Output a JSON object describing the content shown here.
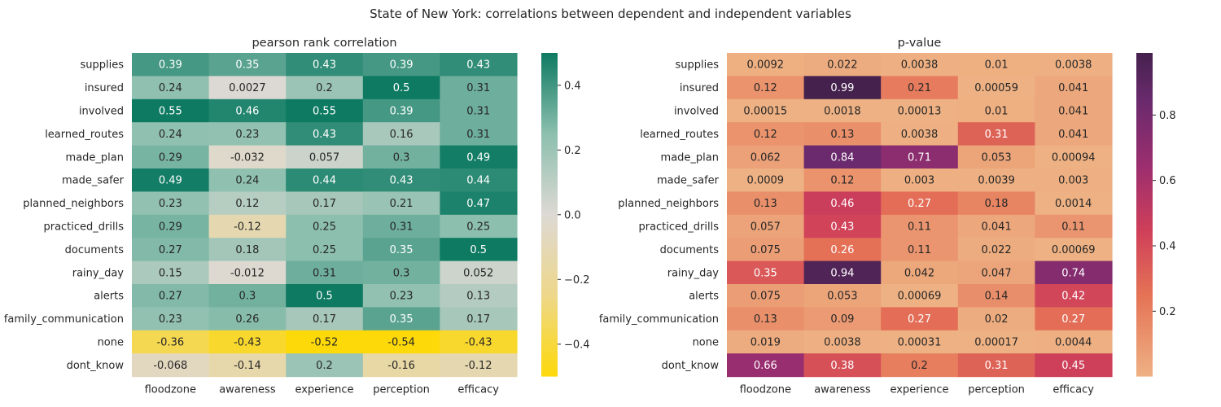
{
  "suptitle": "State of New York: correlations between dependent and independent variables",
  "chart_data": [
    {
      "type": "heatmap",
      "title": "pearson rank correlation",
      "x": [
        "floodzone",
        "awareness",
        "experience",
        "perception",
        "efficacy"
      ],
      "y": [
        "supplies",
        "insured",
        "involved",
        "learned_routes",
        "made_plan",
        "made_safer",
        "planned_neighbors",
        "practiced_drills",
        "documents",
        "rainy_day",
        "alerts",
        "family_communication",
        "none",
        "dont_know"
      ],
      "values": [
        [
          0.39,
          0.35,
          0.43,
          0.39,
          0.43
        ],
        [
          0.24,
          0.0027,
          0.2,
          0.5,
          0.31
        ],
        [
          0.55,
          0.46,
          0.55,
          0.39,
          0.31
        ],
        [
          0.24,
          0.23,
          0.43,
          0.16,
          0.31
        ],
        [
          0.29,
          -0.032,
          0.057,
          0.3,
          0.49
        ],
        [
          0.49,
          0.24,
          0.44,
          0.43,
          0.44
        ],
        [
          0.23,
          0.12,
          0.17,
          0.21,
          0.47
        ],
        [
          0.29,
          -0.12,
          0.25,
          0.31,
          0.25
        ],
        [
          0.27,
          0.18,
          0.25,
          0.35,
          0.5
        ],
        [
          0.15,
          -0.012,
          0.31,
          0.3,
          0.052
        ],
        [
          0.27,
          0.3,
          0.5,
          0.23,
          0.13
        ],
        [
          0.23,
          0.26,
          0.17,
          0.35,
          0.17
        ],
        [
          -0.36,
          -0.43,
          -0.52,
          -0.54,
          -0.43
        ],
        [
          -0.068,
          -0.14,
          0.2,
          -0.16,
          -0.12
        ]
      ],
      "labels": [
        [
          "0.39",
          "0.35",
          "0.43",
          "0.39",
          "0.43"
        ],
        [
          "0.24",
          "0.0027",
          "0.2",
          "0.5",
          "0.31"
        ],
        [
          "0.55",
          "0.46",
          "0.55",
          "0.39",
          "0.31"
        ],
        [
          "0.24",
          "0.23",
          "0.43",
          "0.16",
          "0.31"
        ],
        [
          "0.29",
          "-0.032",
          "0.057",
          "0.3",
          "0.49"
        ],
        [
          "0.49",
          "0.24",
          "0.44",
          "0.43",
          "0.44"
        ],
        [
          "0.23",
          "0.12",
          "0.17",
          "0.21",
          "0.47"
        ],
        [
          "0.29",
          "-0.12",
          "0.25",
          "0.31",
          "0.25"
        ],
        [
          "0.27",
          "0.18",
          "0.25",
          "0.35",
          "0.5"
        ],
        [
          "0.15",
          "-0.012",
          "0.31",
          "0.3",
          "0.052"
        ],
        [
          "0.27",
          "0.3",
          "0.5",
          "0.23",
          "0.13"
        ],
        [
          "0.23",
          "0.26",
          "0.17",
          "0.35",
          "0.17"
        ],
        [
          "-0.36",
          "-0.43",
          "-0.52",
          "-0.54",
          "-0.43"
        ],
        [
          "-0.068",
          "-0.14",
          "0.2",
          "-0.16",
          "-0.12"
        ]
      ],
      "colorbar": {
        "range": [
          -0.5,
          0.5
        ],
        "ticks": [
          -0.4,
          -0.2,
          0.0,
          0.2,
          0.4
        ],
        "tick_labels": [
          "−0.4",
          "−0.2",
          "0.0",
          "0.2",
          "0.4"
        ],
        "colors": [
          [
            -0.5,
            "#fdd90a"
          ],
          [
            -0.25,
            "#eed78a"
          ],
          [
            0.0,
            "#ddd9d4"
          ],
          [
            0.25,
            "#8cbfae"
          ],
          [
            0.5,
            "#0e7a62"
          ]
        ]
      }
    },
    {
      "type": "heatmap",
      "title": "p-value",
      "x": [
        "floodzone",
        "awareness",
        "experience",
        "perception",
        "efficacy"
      ],
      "y": [
        "supplies",
        "insured",
        "involved",
        "learned_routes",
        "made_plan",
        "made_safer",
        "planned_neighbors",
        "practiced_drills",
        "documents",
        "rainy_day",
        "alerts",
        "family_communication",
        "none",
        "dont_know"
      ],
      "values": [
        [
          0.0092,
          0.022,
          0.0038,
          0.01,
          0.0038
        ],
        [
          0.12,
          0.99,
          0.21,
          0.00059,
          0.041
        ],
        [
          0.00015,
          0.0018,
          0.00013,
          0.01,
          0.041
        ],
        [
          0.12,
          0.13,
          0.0038,
          0.31,
          0.041
        ],
        [
          0.062,
          0.84,
          0.71,
          0.053,
          0.00094
        ],
        [
          0.0009,
          0.12,
          0.003,
          0.0039,
          0.003
        ],
        [
          0.13,
          0.46,
          0.27,
          0.18,
          0.0014
        ],
        [
          0.057,
          0.43,
          0.11,
          0.041,
          0.11
        ],
        [
          0.075,
          0.26,
          0.11,
          0.022,
          0.00069
        ],
        [
          0.35,
          0.94,
          0.042,
          0.047,
          0.74
        ],
        [
          0.075,
          0.053,
          0.00069,
          0.14,
          0.42
        ],
        [
          0.13,
          0.09,
          0.27,
          0.02,
          0.27
        ],
        [
          0.019,
          0.0038,
          0.00031,
          0.00017,
          0.0044
        ],
        [
          0.66,
          0.38,
          0.2,
          0.31,
          0.45
        ]
      ],
      "labels": [
        [
          "0.0092",
          "0.022",
          "0.0038",
          "0.01",
          "0.0038"
        ],
        [
          "0.12",
          "0.99",
          "0.21",
          "0.00059",
          "0.041"
        ],
        [
          "0.00015",
          "0.0018",
          "0.00013",
          "0.01",
          "0.041"
        ],
        [
          "0.12",
          "0.13",
          "0.0038",
          "0.31",
          "0.041"
        ],
        [
          "0.062",
          "0.84",
          "0.71",
          "0.053",
          "0.00094"
        ],
        [
          "0.0009",
          "0.12",
          "0.003",
          "0.0039",
          "0.003"
        ],
        [
          "0.13",
          "0.46",
          "0.27",
          "0.18",
          "0.0014"
        ],
        [
          "0.057",
          "0.43",
          "0.11",
          "0.041",
          "0.11"
        ],
        [
          "0.075",
          "0.26",
          "0.11",
          "0.022",
          "0.00069"
        ],
        [
          "0.35",
          "0.94",
          "0.042",
          "0.047",
          "0.74"
        ],
        [
          "0.075",
          "0.053",
          "0.00069",
          "0.14",
          "0.42"
        ],
        [
          "0.13",
          "0.09",
          "0.27",
          "0.02",
          "0.27"
        ],
        [
          "0.019",
          "0.0038",
          "0.00031",
          "0.00017",
          "0.0044"
        ],
        [
          "0.66",
          "0.38",
          "0.2",
          "0.31",
          "0.45"
        ]
      ],
      "colorbar": {
        "range": [
          0.00013,
          0.99
        ],
        "ticks": [
          0.2,
          0.4,
          0.6,
          0.8
        ],
        "tick_labels": [
          "0.2",
          "0.4",
          "0.6",
          "0.8"
        ],
        "colors": [
          [
            0.0,
            "#eeb183"
          ],
          [
            0.25,
            "#e57356"
          ],
          [
            0.45,
            "#cf3f59"
          ],
          [
            0.65,
            "#9c2e6f"
          ],
          [
            0.85,
            "#6a2a6d"
          ],
          [
            1.0,
            "#45214e"
          ]
        ]
      }
    }
  ]
}
